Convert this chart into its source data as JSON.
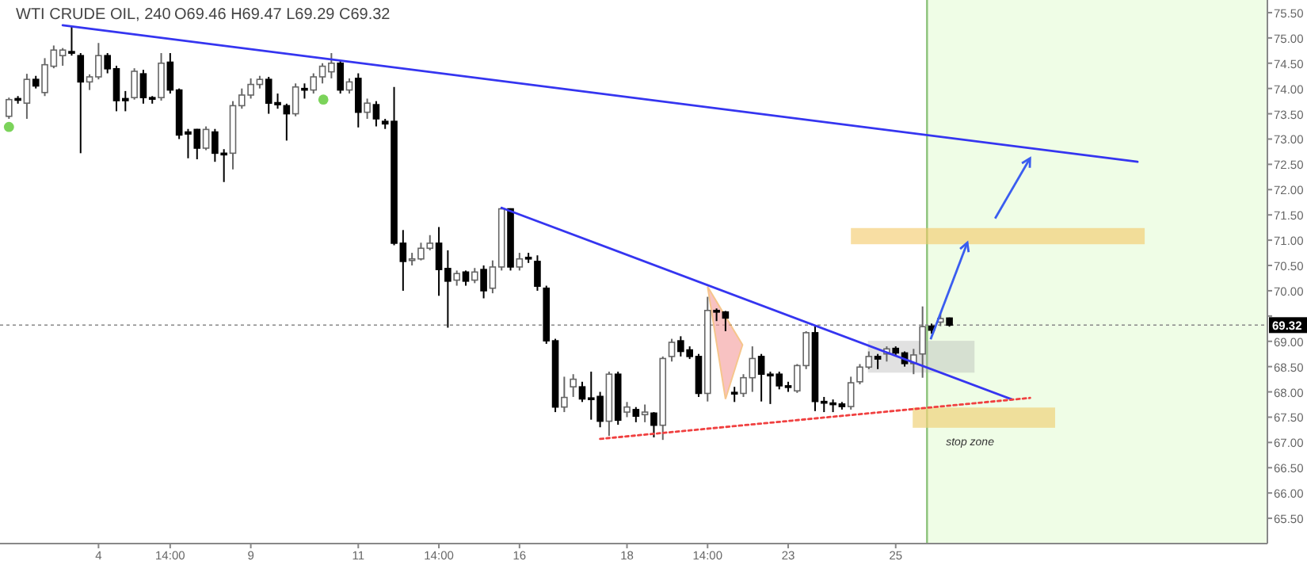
{
  "chart_data": {
    "type": "candlestick",
    "title": "WTI CRUDE OIL, 240",
    "subtitle": "O69.46  H69.47  L69.29  C69.32",
    "categories": [
      null,
      null,
      null,
      null,
      null,
      null,
      null,
      null,
      null,
      null,
      "4",
      null,
      null,
      null,
      null,
      null,
      null,
      null,
      "14:00",
      null,
      null,
      null,
      null,
      null,
      null,
      null,
      null,
      "9",
      null,
      null,
      null,
      null,
      null,
      null,
      null,
      null,
      null,
      null,
      null,
      "11",
      null,
      null,
      null,
      null,
      null,
      null,
      null,
      null,
      "14:00",
      null,
      null,
      null,
      null,
      null,
      null,
      null,
      null,
      "16",
      null,
      null,
      null,
      null,
      null,
      null,
      null,
      null,
      null,
      null,
      null,
      "18",
      null,
      null,
      null,
      null,
      null,
      null,
      null,
      null,
      "14:00",
      null,
      null,
      null,
      null,
      null,
      null,
      null,
      null,
      "23",
      null,
      null,
      null,
      null,
      null,
      null,
      null,
      null,
      null,
      null,
      null,
      "25",
      null,
      null,
      null,
      null,
      null,
      null,
      null,
      null,
      null,
      null,
      null,
      null,
      null,
      null,
      null,
      null,
      null,
      null,
      null,
      null,
      null,
      null,
      null,
      null,
      null,
      null,
      null,
      null,
      null,
      null,
      null,
      null,
      null,
      null,
      null,
      null,
      null,
      null,
      null,
      null,
      null
    ],
    "ohlc": [
      [
        73.45,
        73.82,
        73.4,
        73.78
      ],
      [
        73.8,
        73.85,
        73.7,
        73.77
      ],
      [
        73.71,
        74.29,
        73.4,
        74.18
      ],
      [
        74.18,
        74.25,
        74.0,
        74.05
      ],
      [
        73.92,
        74.6,
        73.85,
        74.47
      ],
      [
        74.44,
        74.85,
        74.4,
        74.76
      ],
      [
        74.65,
        74.8,
        74.45,
        74.76
      ],
      [
        74.73,
        75.23,
        74.65,
        74.7
      ],
      [
        74.65,
        74.7,
        72.72,
        74.13
      ],
      [
        74.13,
        74.28,
        73.97,
        74.23
      ],
      [
        74.23,
        74.9,
        74.18,
        74.65
      ],
      [
        74.65,
        74.7,
        74.3,
        74.39
      ],
      [
        74.39,
        74.45,
        73.55,
        73.76
      ],
      [
        73.8,
        73.95,
        73.55,
        73.76
      ],
      [
        73.82,
        74.4,
        73.78,
        74.34
      ],
      [
        74.29,
        74.37,
        73.7,
        73.82
      ],
      [
        73.82,
        73.85,
        73.7,
        73.79
      ],
      [
        73.82,
        74.7,
        73.76,
        74.5
      ],
      [
        74.52,
        74.7,
        73.9,
        73.97
      ],
      [
        73.97,
        74.0,
        73.0,
        73.08
      ],
      [
        73.14,
        73.2,
        72.62,
        73.1
      ],
      [
        73.19,
        73.2,
        72.6,
        72.82
      ],
      [
        72.82,
        73.25,
        72.78,
        73.19
      ],
      [
        73.14,
        73.2,
        72.55,
        72.72
      ],
      [
        72.72,
        72.8,
        72.15,
        72.7
      ],
      [
        72.72,
        73.75,
        72.4,
        73.66
      ],
      [
        73.66,
        74.0,
        73.6,
        73.87
      ],
      [
        73.87,
        74.2,
        73.8,
        74.08
      ],
      [
        74.08,
        74.25,
        74.0,
        74.18
      ],
      [
        74.18,
        74.23,
        73.5,
        73.71
      ],
      [
        73.72,
        73.9,
        73.6,
        73.68
      ],
      [
        73.66,
        73.7,
        72.97,
        73.5
      ],
      [
        73.5,
        74.1,
        73.45,
        74.03
      ],
      [
        74.0,
        74.1,
        73.8,
        73.97
      ],
      [
        73.97,
        74.3,
        73.9,
        74.23
      ],
      [
        74.23,
        74.5,
        74.1,
        74.44
      ],
      [
        74.33,
        74.7,
        74.2,
        74.5
      ],
      [
        74.5,
        74.55,
        73.9,
        73.97
      ],
      [
        73.97,
        74.2,
        73.9,
        74.13
      ],
      [
        74.2,
        74.3,
        73.23,
        73.53
      ],
      [
        73.53,
        73.8,
        73.4,
        73.71
      ],
      [
        73.68,
        73.75,
        73.25,
        73.4
      ],
      [
        73.35,
        73.4,
        73.2,
        73.3
      ],
      [
        73.35,
        74.03,
        70.9,
        70.94
      ],
      [
        70.94,
        71.2,
        70.0,
        70.58
      ],
      [
        70.62,
        70.75,
        70.5,
        70.63
      ],
      [
        70.63,
        70.95,
        70.6,
        70.84
      ],
      [
        70.84,
        71.1,
        70.8,
        70.94
      ],
      [
        70.94,
        71.26,
        69.9,
        70.42
      ],
      [
        70.44,
        70.8,
        69.27,
        70.19
      ],
      [
        70.21,
        70.4,
        70.1,
        70.34
      ],
      [
        70.37,
        70.4,
        70.1,
        70.19
      ],
      [
        70.21,
        70.45,
        70.15,
        70.37
      ],
      [
        70.42,
        70.5,
        69.85,
        70.0
      ],
      [
        70.05,
        70.6,
        69.95,
        70.47
      ],
      [
        70.47,
        71.63,
        70.4,
        71.62
      ],
      [
        71.62,
        71.63,
        70.4,
        70.47
      ],
      [
        70.47,
        70.75,
        70.4,
        70.63
      ],
      [
        70.66,
        70.75,
        70.55,
        70.63
      ],
      [
        70.58,
        70.7,
        70.0,
        70.09
      ],
      [
        70.05,
        70.1,
        68.95,
        69.01
      ],
      [
        69.01,
        69.05,
        67.6,
        67.7
      ],
      [
        67.7,
        68.3,
        67.6,
        67.89
      ],
      [
        68.1,
        68.35,
        67.9,
        68.25
      ],
      [
        68.1,
        68.2,
        67.8,
        67.86
      ],
      [
        67.88,
        68.4,
        67.45,
        67.85
      ],
      [
        67.91,
        68.0,
        67.3,
        67.42
      ],
      [
        67.42,
        68.4,
        67.13,
        68.35
      ],
      [
        68.35,
        68.4,
        67.35,
        67.44
      ],
      [
        67.6,
        67.8,
        67.5,
        67.7
      ],
      [
        67.65,
        67.7,
        67.4,
        67.52
      ],
      [
        67.55,
        67.75,
        67.4,
        67.6
      ],
      [
        67.58,
        67.6,
        67.1,
        67.34
      ],
      [
        67.34,
        68.7,
        67.05,
        68.66
      ],
      [
        68.7,
        69.05,
        68.6,
        68.98
      ],
      [
        69.01,
        69.1,
        68.7,
        68.8
      ],
      [
        68.83,
        68.9,
        68.65,
        68.7
      ],
      [
        68.7,
        68.75,
        67.9,
        67.97
      ],
      [
        67.97,
        69.88,
        67.81,
        69.61
      ],
      [
        69.61,
        69.65,
        69.4,
        69.58
      ],
      [
        69.58,
        69.6,
        69.2,
        69.46
      ],
      [
        67.99,
        68.1,
        67.8,
        67.97
      ],
      [
        67.97,
        68.35,
        67.9,
        68.28
      ],
      [
        68.28,
        68.9,
        68.0,
        68.66
      ],
      [
        68.7,
        68.75,
        67.81,
        68.35
      ],
      [
        68.35,
        68.4,
        67.76,
        68.34
      ],
      [
        68.35,
        68.4,
        68.05,
        68.12
      ],
      [
        68.12,
        68.2,
        68.0,
        68.1
      ],
      [
        68.02,
        68.55,
        67.98,
        68.52
      ],
      [
        68.52,
        69.2,
        68.45,
        69.17
      ],
      [
        69.17,
        69.3,
        67.62,
        67.81
      ],
      [
        67.81,
        67.9,
        67.6,
        67.8
      ],
      [
        67.78,
        67.85,
        67.6,
        67.75
      ],
      [
        67.76,
        67.8,
        67.65,
        67.71
      ],
      [
        67.71,
        68.3,
        67.65,
        68.18
      ],
      [
        68.2,
        68.55,
        68.15,
        68.49
      ],
      [
        68.49,
        68.8,
        68.45,
        68.7
      ],
      [
        68.7,
        68.75,
        68.45,
        68.65
      ],
      [
        68.75,
        68.9,
        68.6,
        68.85
      ],
      [
        68.86,
        68.9,
        68.7,
        68.77
      ],
      [
        68.77,
        68.8,
        68.5,
        68.56
      ],
      [
        68.56,
        68.85,
        68.35,
        68.73
      ],
      [
        68.75,
        69.69,
        68.28,
        69.29
      ],
      [
        69.3,
        69.35,
        69.15,
        69.22
      ],
      [
        69.38,
        69.55,
        69.3,
        69.45
      ],
      [
        69.46,
        69.47,
        69.29,
        69.32
      ],
      null,
      null,
      null,
      null,
      null,
      null,
      null,
      null,
      null,
      null,
      null,
      null,
      null,
      null,
      null,
      null,
      null,
      null,
      null,
      null,
      null,
      null,
      null,
      null,
      null,
      null,
      null,
      null,
      null,
      null,
      null,
      null,
      null,
      null,
      null
    ],
    "series": [
      {
        "type": "line",
        "color": "#3535f0",
        "line_style": "solid",
        "values": [
          null,
          null,
          null,
          null,
          null,
          null,
          75.25,
          null,
          null,
          null,
          null,
          null,
          null,
          null,
          null,
          null,
          null,
          null,
          null,
          null,
          null,
          null,
          null,
          null,
          null,
          null,
          null,
          null,
          null,
          null,
          null,
          null,
          null,
          null,
          null,
          null,
          null,
          null,
          null,
          null,
          null,
          null,
          null,
          null,
          null,
          null,
          null,
          null,
          null,
          null,
          null,
          null,
          null,
          null,
          null,
          null,
          null,
          null,
          null,
          null,
          null,
          null,
          null,
          null,
          null,
          null,
          null,
          null,
          null,
          null,
          null,
          null,
          null,
          null,
          null,
          null,
          null,
          null,
          null,
          null,
          null,
          null,
          null,
          null,
          null,
          null,
          null,
          null,
          null,
          null,
          null,
          null,
          null,
          null,
          null,
          null,
          null,
          null,
          null,
          null,
          null,
          null,
          null,
          null,
          null,
          null,
          null,
          null,
          null,
          null,
          null,
          null,
          null,
          null,
          null,
          null,
          null,
          null,
          null,
          null,
          null,
          null,
          null,
          null,
          null,
          null,
          72.55,
          null,
          null,
          null,
          null,
          null,
          null,
          null,
          null,
          null,
          null,
          null,
          null,
          null,
          null
        ]
      },
      {
        "type": "line",
        "color": "#3535f0",
        "line_style": "solid",
        "values": [
          null,
          null,
          null,
          null,
          null,
          null,
          null,
          null,
          null,
          null,
          null,
          null,
          null,
          null,
          null,
          null,
          null,
          null,
          null,
          null,
          null,
          null,
          null,
          null,
          null,
          null,
          null,
          null,
          null,
          null,
          null,
          null,
          null,
          null,
          null,
          null,
          null,
          null,
          null,
          null,
          null,
          null,
          null,
          null,
          null,
          null,
          null,
          null,
          null,
          null,
          null,
          null,
          null,
          null,
          null,
          71.64,
          null,
          null,
          null,
          null,
          null,
          null,
          null,
          null,
          null,
          null,
          null,
          null,
          null,
          null,
          null,
          null,
          null,
          null,
          null,
          null,
          null,
          null,
          null,
          null,
          null,
          null,
          null,
          null,
          null,
          null,
          null,
          null,
          null,
          null,
          null,
          null,
          null,
          null,
          null,
          null,
          null,
          null,
          null,
          null,
          null,
          null,
          null,
          null,
          null,
          null,
          null,
          null,
          null,
          null,
          null,
          null,
          67.85,
          null,
          null,
          null,
          null,
          null,
          null,
          null,
          null,
          null,
          null,
          null,
          null,
          null,
          null,
          null,
          null,
          null,
          null,
          null,
          null,
          null,
          null,
          null,
          null,
          null,
          null,
          null,
          null
        ]
      },
      {
        "type": "line",
        "color": "#f04040",
        "line_style": "dotted",
        "values": [
          null,
          null,
          null,
          null,
          null,
          null,
          null,
          null,
          null,
          null,
          null,
          null,
          null,
          null,
          null,
          null,
          null,
          null,
          null,
          null,
          null,
          null,
          null,
          null,
          null,
          null,
          null,
          null,
          null,
          null,
          null,
          null,
          null,
          null,
          null,
          null,
          null,
          null,
          null,
          null,
          null,
          null,
          null,
          null,
          null,
          null,
          null,
          null,
          null,
          null,
          null,
          null,
          null,
          null,
          null,
          null,
          null,
          null,
          null,
          null,
          null,
          null,
          null,
          null,
          null,
          null,
          67.07,
          null,
          null,
          null,
          null,
          null,
          null,
          null,
          null,
          null,
          null,
          null,
          null,
          null,
          null,
          null,
          null,
          null,
          null,
          null,
          null,
          null,
          null,
          null,
          null,
          null,
          null,
          null,
          null,
          null,
          null,
          null,
          null,
          null,
          null,
          null,
          null,
          null,
          null,
          null,
          null,
          null,
          null,
          null,
          null,
          null,
          null,
          null,
          67.88,
          null,
          null,
          null,
          null,
          null,
          null,
          null,
          null,
          null,
          null,
          null,
          null,
          null,
          null,
          null,
          null,
          null,
          null,
          null,
          null,
          null,
          null,
          null,
          null,
          null,
          null
        ]
      }
    ],
    "ylim": [
      65.0,
      75.75
    ],
    "yticks": [
      {
        "value": 65.5,
        "label": "65.50"
      },
      {
        "value": 66,
        "label": "66.00"
      },
      {
        "value": 66.5,
        "label": "66.50"
      },
      {
        "value": 67,
        "label": "67.00"
      },
      {
        "value": 67.5,
        "label": "67.50"
      },
      {
        "value": 68,
        "label": "68.00"
      },
      {
        "value": 68.5,
        "label": "68.50"
      },
      {
        "value": 69,
        "label": "69.00"
      },
      {
        "value": 69.5,
        "label": null
      },
      {
        "value": 70,
        "label": "70.00"
      },
      {
        "value": 70.5,
        "label": "70.50"
      },
      {
        "value": 71,
        "label": "71.00"
      },
      {
        "value": 71.5,
        "label": "71.50"
      },
      {
        "value": 72,
        "label": "72.00"
      },
      {
        "value": 72.5,
        "label": "72.50"
      },
      {
        "value": 73,
        "label": "73.00"
      },
      {
        "value": 73.5,
        "label": "73.50"
      },
      {
        "value": 74,
        "label": "74.00"
      },
      {
        "value": 74.5,
        "label": "74.50"
      },
      {
        "value": 75,
        "label": "75.00"
      },
      {
        "value": 75.5,
        "label": "75.50"
      }
    ],
    "ref_lines": [
      {
        "axis": "y",
        "value": 69.32,
        "label": "69.32",
        "color": "#888888",
        "line_style": "dotted"
      }
    ],
    "annotations": [
      "stop zone"
    ],
    "grid": false
  }
}
